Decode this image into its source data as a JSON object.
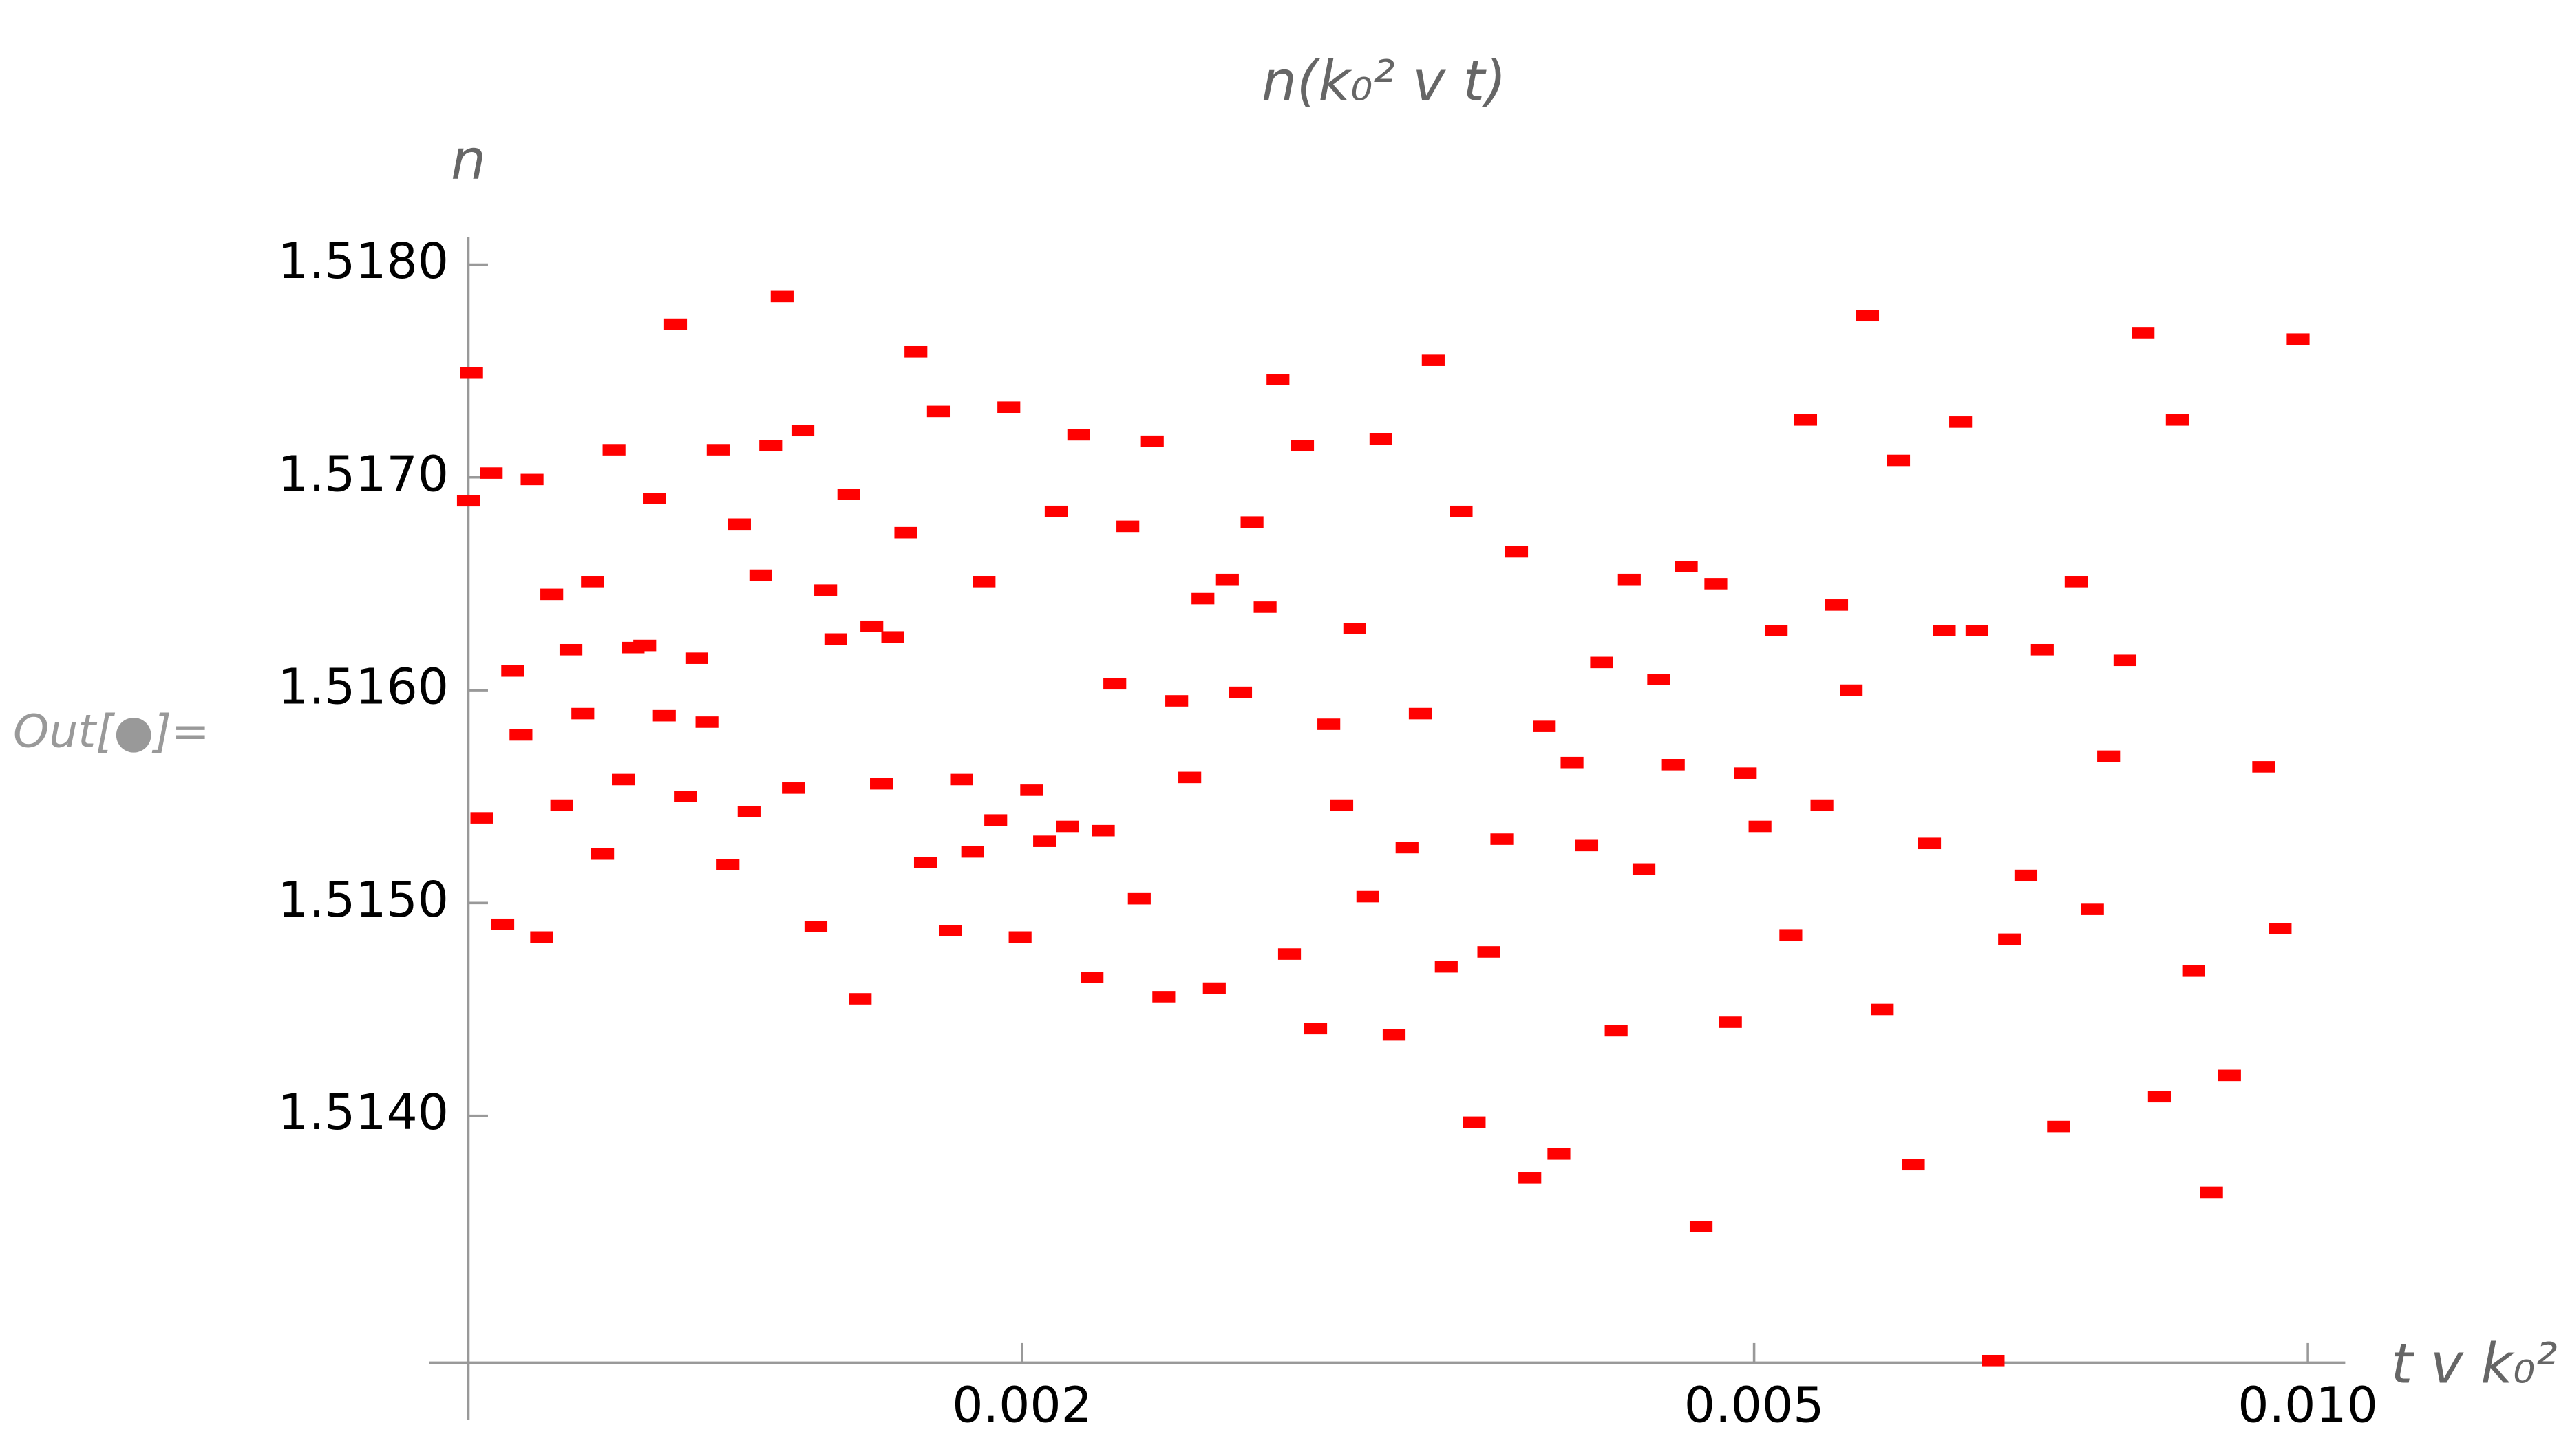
{
  "cell_label": "Out[●]=",
  "chart_data": {
    "type": "scatter",
    "title": "n(k₀² v t)",
    "xlabel": "t v k₀²",
    "ylabel": "n",
    "xscale": "log",
    "color": "#ff0000",
    "xlim": [
      0.001,
      0.0105
    ],
    "ylim": [
      1.51284,
      1.51813
    ],
    "xticks": [
      0.002,
      0.005,
      {
        "value": 0.01,
        "label": "0.010"
      }
    ],
    "yticks": [
      {
        "value": 1.514,
        "label": "1.5140"
      },
      {
        "value": 1.515,
        "label": "1.5150"
      },
      {
        "value": 1.516,
        "label": "1.5160"
      },
      {
        "value": 1.517,
        "label": "1.5170"
      },
      {
        "value": 1.518,
        "label": "1.5180"
      }
    ],
    "x": [
      0.001004,
      0.001,
      0.001017,
      0.001029,
      0.001044,
      0.001057,
      0.001068,
      0.001083,
      0.001096,
      0.00111,
      0.001124,
      0.001137,
      0.001154,
      0.001168,
      0.001183,
      0.0012,
      0.001214,
      0.001229,
      0.001247,
      0.001262,
      0.001278,
      0.001296,
      0.001312,
      0.001331,
      0.001348,
      0.001367,
      0.001384,
      0.001404,
      0.001421,
      0.001442,
      0.00146,
      0.001481,
      0.001502,
      0.00152,
      0.001545,
      0.001564,
      0.001584,
      0.00161,
      0.001633,
      0.001657,
      0.001677,
      0.001701,
      0.001729,
      0.001751,
      0.001772,
      0.001801,
      0.001828,
      0.001854,
      0.00188,
      0.001907,
      0.001935,
      0.001967,
      0.001995,
      0.002024,
      0.002057,
      0.002087,
      0.002117,
      0.002147,
      0.002183,
      0.002214,
      0.002246,
      0.002283,
      0.002316,
      0.002354,
      0.002388,
      0.002427,
      0.002467,
      0.002508,
      0.002544,
      0.002586,
      0.002629,
      0.002667,
      0.002711,
      0.002755,
      0.002795,
      0.002841,
      0.002888,
      0.002936,
      0.002984,
      0.003033,
      0.003083,
      0.003134,
      0.003186,
      0.003238,
      0.003292,
      0.003346,
      0.003401,
      0.003465,
      0.003522,
      0.003587,
      0.003646,
      0.003714,
      0.003776,
      0.003845,
      0.003916,
      0.003981,
      0.004055,
      0.004131,
      0.004207,
      0.004277,
      0.004356,
      0.004437,
      0.004519,
      0.004593,
      0.004679,
      0.004766,
      0.004854,
      0.004945,
      0.005037,
      0.00514,
      0.005235,
      0.005333,
      0.005443,
      0.005544,
      0.005646,
      0.005763,
      0.00587,
      0.005991,
      0.006103,
      0.006228,
      0.006344,
      0.006475,
      0.006609,
      0.006744,
      0.006884,
      0.007026,
      0.007172,
      0.007319,
      0.007482,
      0.007637,
      0.007793,
      0.007954,
      0.008136,
      0.008304,
      0.008492,
      0.008668,
      0.008864,
      0.009066,
      0.009462,
      0.009659,
      0.009879
    ],
    "values": [
      1.51749,
      1.51689,
      1.5154,
      1.51702,
      1.5149,
      1.51609,
      1.51579,
      1.51699,
      1.51484,
      1.51645,
      1.51546,
      1.51619,
      1.51589,
      1.51651,
      1.51523,
      1.51713,
      1.51558,
      1.5162,
      1.51621,
      1.5169,
      1.51588,
      1.51772,
      1.5155,
      1.51615,
      1.51585,
      1.51713,
      1.51518,
      1.51678,
      1.51543,
      1.51654,
      1.51715,
      1.51785,
      1.51554,
      1.51722,
      1.51489,
      1.51647,
      1.51624,
      1.51692,
      1.51455,
      1.5163,
      1.51556,
      1.51625,
      1.51674,
      1.51759,
      1.51519,
      1.51731,
      1.51487,
      1.51558,
      1.51524,
      1.51651,
      1.51539,
      1.51733,
      1.51484,
      1.51553,
      1.51529,
      1.51684,
      1.51536,
      1.5172,
      1.51465,
      1.51534,
      1.51603,
      1.51677,
      1.51502,
      1.51717,
      1.51456,
      1.51595,
      1.51559,
      1.51643,
      1.5146,
      1.51652,
      1.51599,
      1.51679,
      1.51639,
      1.51746,
      1.51476,
      1.51715,
      1.51441,
      1.51584,
      1.51546,
      1.51629,
      1.51503,
      1.51718,
      1.51438,
      1.51526,
      1.51589,
      1.51755,
      1.5147,
      1.51684,
      1.51397,
      1.51477,
      1.5153,
      1.51665,
      1.51371,
      1.51583,
      1.51382,
      1.51566,
      1.51527,
      1.51613,
      1.5144,
      1.51652,
      1.51516,
      1.51605,
      1.51565,
      1.51658,
      1.51348,
      1.5165,
      1.51444,
      1.51561,
      1.51536,
      1.51628,
      1.51485,
      1.51727,
      1.51546,
      1.5164,
      1.516,
      1.51776,
      1.5145,
      1.51708,
      1.51377,
      1.51528,
      1.51628,
      1.51726,
      1.51628,
      1.51285,
      1.51483,
      1.51513,
      1.51619,
      1.51395,
      1.51651,
      1.51497,
      1.51569,
      1.51614,
      1.51768,
      1.51409,
      1.51727,
      1.51468,
      1.51364,
      1.51419,
      1.51564,
      1.51488,
      1.51765
    ]
  }
}
